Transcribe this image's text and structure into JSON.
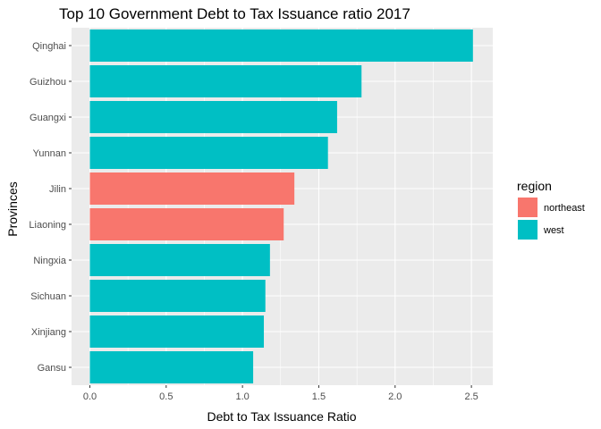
{
  "chart_data": {
    "type": "bar",
    "orientation": "horizontal",
    "title": "Top 10 Government Debt to Tax Issuance ratio 2017",
    "xlabel": "Debt to Tax Issuance Ratio",
    "ylabel": "Provinces",
    "xlim": [
      -0.12,
      2.64
    ],
    "xticks": [
      0.0,
      0.5,
      1.0,
      1.5,
      2.0,
      2.5
    ],
    "xtick_labels": [
      "0.0",
      "0.5",
      "1.0",
      "1.5",
      "2.0",
      "2.5"
    ],
    "grid": true,
    "legend": {
      "title": "region",
      "placement": "right",
      "entries": [
        {
          "label": "northeast",
          "color": "#F8766D"
        },
        {
          "label": "west",
          "color": "#00BFC4"
        }
      ]
    },
    "categories": [
      "Qinghai",
      "Guizhou",
      "Guangxi",
      "Yunnan",
      "Jilin",
      "Liaoning",
      "Ningxia",
      "Sichuan",
      "Xinjiang",
      "Gansu"
    ],
    "values": [
      2.51,
      1.78,
      1.62,
      1.56,
      1.34,
      1.27,
      1.18,
      1.15,
      1.14,
      1.07
    ],
    "region": [
      "west",
      "west",
      "west",
      "west",
      "northeast",
      "northeast",
      "west",
      "west",
      "west",
      "west"
    ],
    "panel_background": "#EBEBEB"
  }
}
